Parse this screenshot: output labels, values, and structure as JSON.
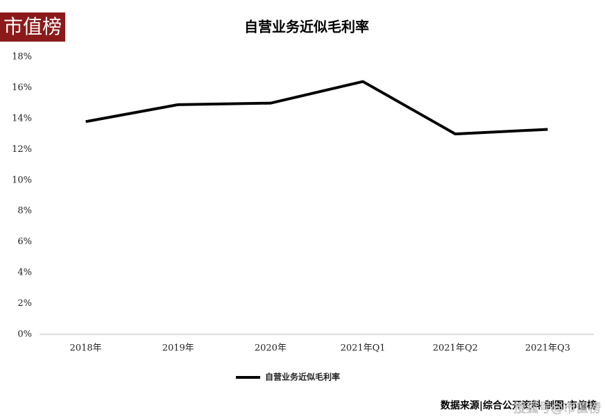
{
  "logo": "市值榜",
  "source": "数据来源|综合公开资料 制图:市值榜",
  "watermark": "搜狐号@市值榜",
  "chart_data": {
    "type": "line",
    "title": "自营业务近似毛利率",
    "categories": [
      "2018年",
      "2019年",
      "2020年",
      "2021年Q1",
      "2021年Q2",
      "2021年Q3"
    ],
    "series": [
      {
        "name": "自营业务近似毛利率",
        "color": "#000000",
        "values": [
          13.8,
          14.9,
          15.0,
          16.4,
          13.0,
          13.3
        ]
      }
    ],
    "ylim": [
      0,
      18
    ],
    "yticks": [
      {
        "value": 0,
        "label": "0%"
      },
      {
        "value": 2,
        "label": "2%"
      },
      {
        "value": 4,
        "label": "4%"
      },
      {
        "value": 6,
        "label": "6%"
      },
      {
        "value": 8,
        "label": "8%"
      },
      {
        "value": 10,
        "label": "10%"
      },
      {
        "value": 12,
        "label": "12%"
      },
      {
        "value": 14,
        "label": "14%"
      },
      {
        "value": 16,
        "label": "16%"
      },
      {
        "value": 18,
        "label": "18%"
      }
    ],
    "grid": false
  }
}
